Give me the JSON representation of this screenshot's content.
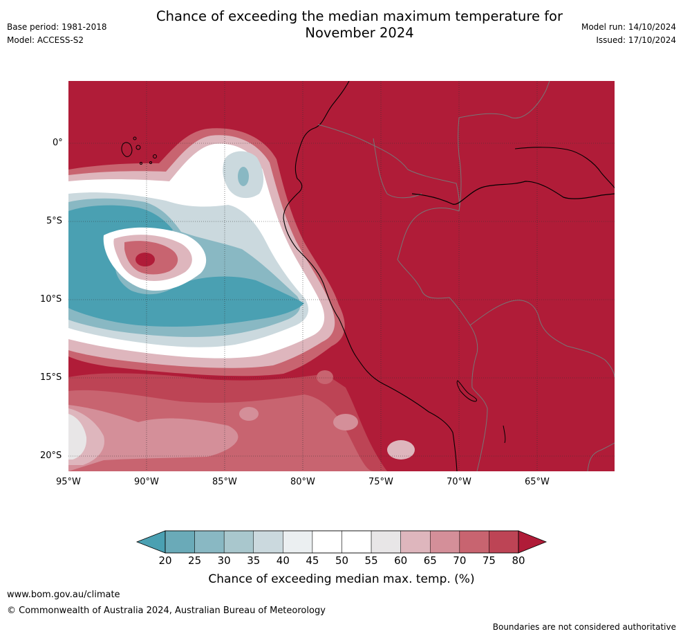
{
  "header": {
    "title_line1": "Chance of exceeding the median maximum temperature for",
    "title_line2": "November 2024",
    "base_period": "Base period: 1981-2018",
    "model": "Model: ACCESS-S2",
    "model_run": "Model run: 14/10/2024",
    "issued": "Issued: 17/10/2024"
  },
  "map": {
    "lat_labels": [
      "0°",
      "5°S",
      "10°S",
      "15°S",
      "20°S"
    ],
    "lon_labels": [
      "95°W",
      "90°W",
      "85°W",
      "80°W",
      "75°W",
      "70°W",
      "65°W"
    ],
    "colors": {
      "hot": "#b01c38",
      "cold": "#4aa0b2"
    }
  },
  "colorbar": {
    "ticks": [
      "20",
      "25",
      "30",
      "35",
      "40",
      "45",
      "50",
      "55",
      "60",
      "65",
      "70",
      "75",
      "80"
    ],
    "colors": [
      "#4aa0b2",
      "#6aaab8",
      "#89b8c3",
      "#a9c7cd",
      "#cbd9de",
      "#ebeff1",
      "#ffffff",
      "#ffffff",
      "#e8e6e7",
      "#deb6bd",
      "#d48f99",
      "#c86470",
      "#bd4455",
      "#b01c38"
    ],
    "label": "Chance of exceeding median max. temp. (%)"
  },
  "footer": {
    "url": "www.bom.gov.au/climate",
    "copyright": "© Commonwealth of Australia 2024, Australian Bureau of Meteorology",
    "disclaimer": "Boundaries are not considered authoritative"
  }
}
